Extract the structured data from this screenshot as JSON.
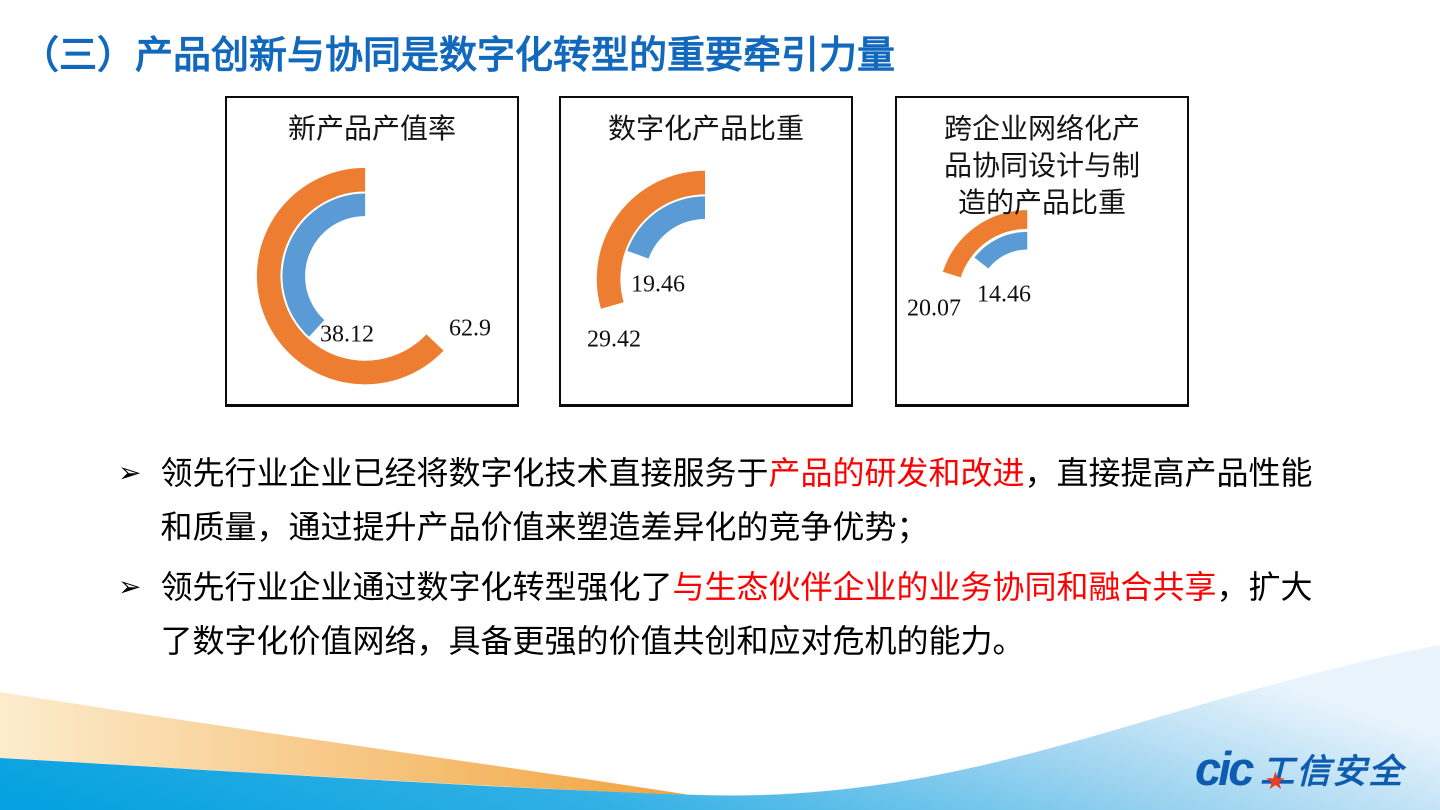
{
  "slide": {
    "title": "（三）产品创新与协同是数字化转型的重要牵引力量"
  },
  "colors": {
    "title_blue": "#1268bd",
    "highlight_red": "#ff0000",
    "chart_orange": "#ED7D31",
    "chart_blue": "#5B9BD5",
    "footer_cyan": "#05a1e0",
    "footer_cyan_mid": "#31b0e4",
    "footer_blue_pale": "#9fd4f0",
    "footer_cyan_light": "#e9f4fc",
    "footer_orange_light": "#fceccd",
    "footer_orange": "#f1a33c",
    "logo_blue": "#0e5cb0",
    "logo_star_red": "#ee3b24"
  },
  "chart_data": [
    {
      "type": "donut-arc",
      "title": "新产品产值率",
      "value_range": [
        0,
        100
      ],
      "series": [
        {
          "name": "orange-arc",
          "value": 62.9,
          "label": "62.9",
          "color": "#ED7D31"
        },
        {
          "name": "blue-arc",
          "value": 38.12,
          "label": "38.12",
          "color": "#5B9BD5"
        }
      ]
    },
    {
      "type": "donut-arc",
      "title": "数字化产品比重",
      "value_range": [
        0,
        100
      ],
      "series": [
        {
          "name": "orange-arc",
          "value": 29.42,
          "label": "29.42",
          "color": "#ED7D31"
        },
        {
          "name": "blue-arc",
          "value": 19.46,
          "label": "19.46",
          "color": "#5B9BD5"
        }
      ]
    },
    {
      "type": "donut-arc",
      "title": "跨企业网络化产品协同设计与制造的产品比重",
      "value_range": [
        0,
        100
      ],
      "series": [
        {
          "name": "orange-arc",
          "value": 20.07,
          "label": "20.07",
          "color": "#ED7D31"
        },
        {
          "name": "blue-arc",
          "value": 14.46,
          "label": "14.46",
          "color": "#5B9BD5"
        }
      ]
    }
  ],
  "bullet_marker": "➢",
  "bullets": [
    {
      "segments": [
        {
          "text": "领先行业企业已经将数字化技术直接服务于",
          "red": false
        },
        {
          "text": "产品的研发和改进",
          "red": true
        },
        {
          "text": "，直接提高产品性能和质量，通过提升产品价值来塑造差异化的竞争优势；",
          "red": false
        }
      ]
    },
    {
      "segments": [
        {
          "text": "领先行业企业通过数字化转型强化了",
          "red": false
        },
        {
          "text": "与生态伙伴企业的业务协同和融合共享",
          "red": true
        },
        {
          "text": "，扩大了数字化价值网络，具备更强的价值共创和应对危机的能力。",
          "red": false
        }
      ]
    }
  ],
  "logo": {
    "brand": "cic",
    "star": "★",
    "suffix": "工信安全"
  }
}
